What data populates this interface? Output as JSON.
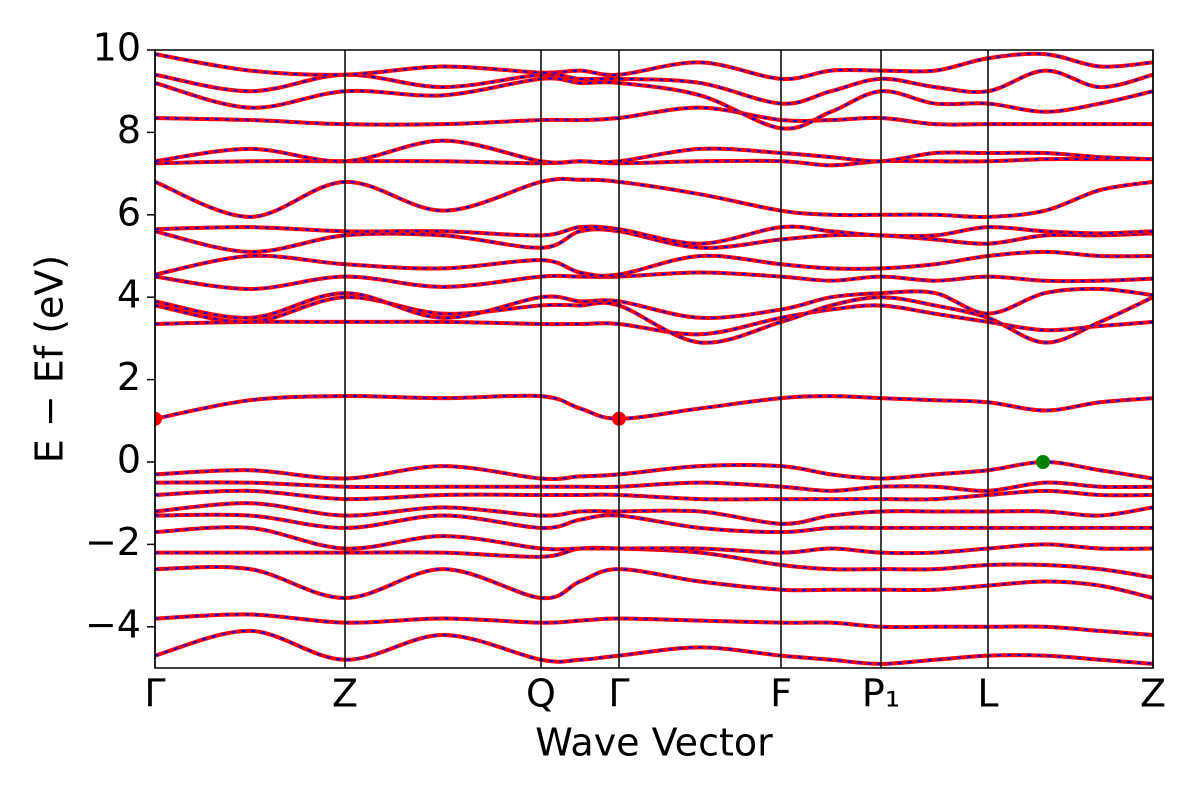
{
  "chart_data": {
    "type": "line",
    "xlabel": "Wave Vector",
    "ylabel": "E − Ef (eV)",
    "color": "#ff0000",
    "dash_color": "#0000ff",
    "xlim": [
      0,
      9.98
    ],
    "ylim": [
      -5,
      10
    ],
    "xticks": [
      {
        "value": 0,
        "label": "Γ"
      },
      {
        "value": 1.9,
        "label": "Z"
      },
      {
        "value": 3.86,
        "label": "Q"
      },
      {
        "value": 4.64,
        "label": "Γ"
      },
      {
        "value": 6.26,
        "label": "F"
      },
      {
        "value": 7.26,
        "label": "P₁"
      },
      {
        "value": 8.33,
        "label": "L"
      },
      {
        "value": 9.98,
        "label": "Z"
      }
    ],
    "yticks": [
      {
        "value": -4,
        "label": "−4"
      },
      {
        "value": -2,
        "label": "−2"
      },
      0,
      2,
      4,
      6,
      8,
      10
    ],
    "x": [
      0,
      0.95,
      1.9,
      2.88,
      3.86,
      4.25,
      4.64,
      5.45,
      6.26,
      6.76,
      7.26,
      7.8,
      8.33,
      8.9,
      9.45,
      9.98
    ],
    "series": [
      {
        "values": [
          -4.7,
          -4.1,
          -4.8,
          -4.2,
          -4.8,
          -4.8,
          -4.7,
          -4.5,
          -4.7,
          -4.8,
          -4.9,
          -4.8,
          -4.7,
          -4.7,
          -4.8,
          -4.9
        ]
      },
      {
        "values": [
          -3.8,
          -3.7,
          -3.9,
          -3.8,
          -3.9,
          -3.85,
          -3.8,
          -3.85,
          -3.9,
          -3.9,
          -4.0,
          -4.0,
          -4.0,
          -4.0,
          -4.1,
          -4.2
        ]
      },
      {
        "values": [
          -2.6,
          -2.6,
          -3.3,
          -2.6,
          -3.3,
          -2.9,
          -2.6,
          -2.9,
          -3.1,
          -3.1,
          -3.1,
          -3.1,
          -3.0,
          -2.9,
          -3.0,
          -3.3
        ]
      },
      {
        "values": [
          -2.2,
          -2.2,
          -2.2,
          -2.2,
          -2.3,
          -2.1,
          -2.1,
          -2.2,
          -2.5,
          -2.6,
          -2.6,
          -2.6,
          -2.5,
          -2.5,
          -2.6,
          -2.8
        ]
      },
      {
        "values": [
          -1.7,
          -1.6,
          -2.1,
          -1.8,
          -2.1,
          -2.1,
          -2.1,
          -2.1,
          -2.2,
          -2.1,
          -2.2,
          -2.2,
          -2.1,
          -2.0,
          -2.1,
          -2.1
        ]
      },
      {
        "values": [
          -1.3,
          -1.3,
          -1.6,
          -1.3,
          -1.6,
          -1.4,
          -1.3,
          -1.6,
          -1.7,
          -1.6,
          -1.6,
          -1.6,
          -1.6,
          -1.6,
          -1.6,
          -1.6
        ]
      },
      {
        "values": [
          -1.2,
          -1.0,
          -1.3,
          -1.1,
          -1.3,
          -1.2,
          -1.2,
          -1.2,
          -1.5,
          -1.3,
          -1.2,
          -1.2,
          -1.2,
          -1.2,
          -1.3,
          -1.1
        ]
      },
      {
        "values": [
          -0.8,
          -0.7,
          -0.9,
          -0.8,
          -0.8,
          -0.8,
          -0.8,
          -0.9,
          -0.9,
          -0.9,
          -0.9,
          -0.9,
          -0.8,
          -0.7,
          -0.8,
          -0.8
        ]
      },
      {
        "values": [
          -0.5,
          -0.5,
          -0.6,
          -0.6,
          -0.6,
          -0.6,
          -0.6,
          -0.5,
          -0.6,
          -0.7,
          -0.6,
          -0.6,
          -0.7,
          -0.5,
          -0.6,
          -0.6
        ]
      },
      {
        "values": [
          -0.3,
          -0.2,
          -0.4,
          -0.1,
          -0.4,
          -0.35,
          -0.3,
          -0.1,
          -0.1,
          -0.3,
          -0.4,
          -0.3,
          -0.2,
          0,
          -0.2,
          -0.4
        ]
      },
      {
        "values": [
          1.05,
          1.5,
          1.6,
          1.55,
          1.6,
          1.3,
          1.05,
          1.3,
          1.55,
          1.6,
          1.55,
          1.5,
          1.45,
          1.25,
          1.45,
          1.55
        ]
      },
      {
        "values": [
          3.35,
          3.4,
          3.4,
          3.4,
          3.35,
          3.35,
          3.35,
          3.1,
          3.5,
          3.7,
          3.8,
          3.6,
          3.4,
          3.2,
          3.3,
          3.4
        ]
      },
      {
        "values": [
          3.8,
          3.4,
          4.0,
          3.6,
          3.8,
          3.8,
          3.8,
          2.9,
          3.4,
          3.8,
          4.0,
          3.8,
          3.5,
          2.9,
          3.4,
          4.0
        ]
      },
      {
        "values": [
          3.9,
          3.5,
          4.1,
          3.5,
          4.0,
          3.9,
          3.9,
          3.5,
          3.7,
          4.0,
          4.1,
          4.1,
          3.6,
          4.1,
          4.2,
          4.05
        ]
      },
      {
        "values": [
          4.5,
          4.2,
          4.5,
          4.25,
          4.5,
          4.5,
          4.5,
          4.6,
          4.5,
          4.4,
          4.5,
          4.4,
          4.5,
          4.4,
          4.4,
          4.45
        ]
      },
      {
        "values": [
          4.55,
          5.0,
          4.8,
          4.7,
          4.9,
          4.6,
          4.55,
          5.0,
          4.8,
          4.7,
          4.7,
          4.8,
          5.0,
          5.1,
          5.0,
          5.0
        ]
      },
      {
        "values": [
          5.6,
          5.1,
          5.5,
          5.5,
          5.2,
          5.6,
          5.6,
          5.2,
          5.4,
          5.5,
          5.5,
          5.4,
          5.3,
          5.5,
          5.5,
          5.55
        ]
      },
      {
        "values": [
          5.65,
          5.7,
          5.6,
          5.6,
          5.5,
          5.7,
          5.65,
          5.3,
          5.7,
          5.6,
          5.5,
          5.5,
          5.7,
          5.6,
          5.55,
          5.6
        ]
      },
      {
        "values": [
          6.8,
          5.95,
          6.8,
          6.1,
          6.8,
          6.85,
          6.8,
          6.5,
          6.1,
          6.0,
          6.0,
          6.0,
          5.95,
          6.1,
          6.6,
          6.8
        ]
      },
      {
        "values": [
          7.25,
          7.3,
          7.3,
          7.3,
          7.25,
          7.3,
          7.25,
          7.3,
          7.3,
          7.2,
          7.3,
          7.3,
          7.3,
          7.35,
          7.35,
          7.35
        ]
      },
      {
        "values": [
          7.3,
          7.6,
          7.3,
          7.8,
          7.3,
          7.3,
          7.3,
          7.6,
          7.5,
          7.4,
          7.3,
          7.5,
          7.5,
          7.5,
          7.4,
          7.35
        ]
      },
      {
        "values": [
          8.35,
          8.3,
          8.2,
          8.2,
          8.3,
          8.3,
          8.35,
          8.6,
          8.3,
          8.3,
          8.35,
          8.2,
          8.2,
          8.2,
          8.2,
          8.2
        ]
      },
      {
        "values": [
          9.2,
          8.6,
          9.0,
          8.9,
          9.3,
          9.2,
          9.2,
          8.9,
          8.1,
          8.5,
          9.0,
          8.7,
          8.7,
          8.5,
          8.7,
          9.0
        ]
      },
      {
        "values": [
          9.4,
          9.0,
          9.4,
          9.1,
          9.4,
          9.3,
          9.3,
          9.2,
          8.7,
          9.0,
          9.3,
          9.1,
          9.0,
          9.5,
          9.1,
          9.4
        ]
      },
      {
        "values": [
          9.9,
          9.5,
          9.4,
          9.6,
          9.45,
          9.5,
          9.4,
          9.7,
          9.3,
          9.5,
          9.5,
          9.5,
          9.8,
          9.9,
          9.6,
          9.7
        ]
      }
    ],
    "points": [
      {
        "color": "#ff0000",
        "x": [
          0,
          4.64
        ],
        "values": [
          1.05,
          1.05
        ]
      },
      {
        "color": "#008000",
        "x": [
          8.88
        ],
        "values": [
          0
        ]
      }
    ]
  }
}
